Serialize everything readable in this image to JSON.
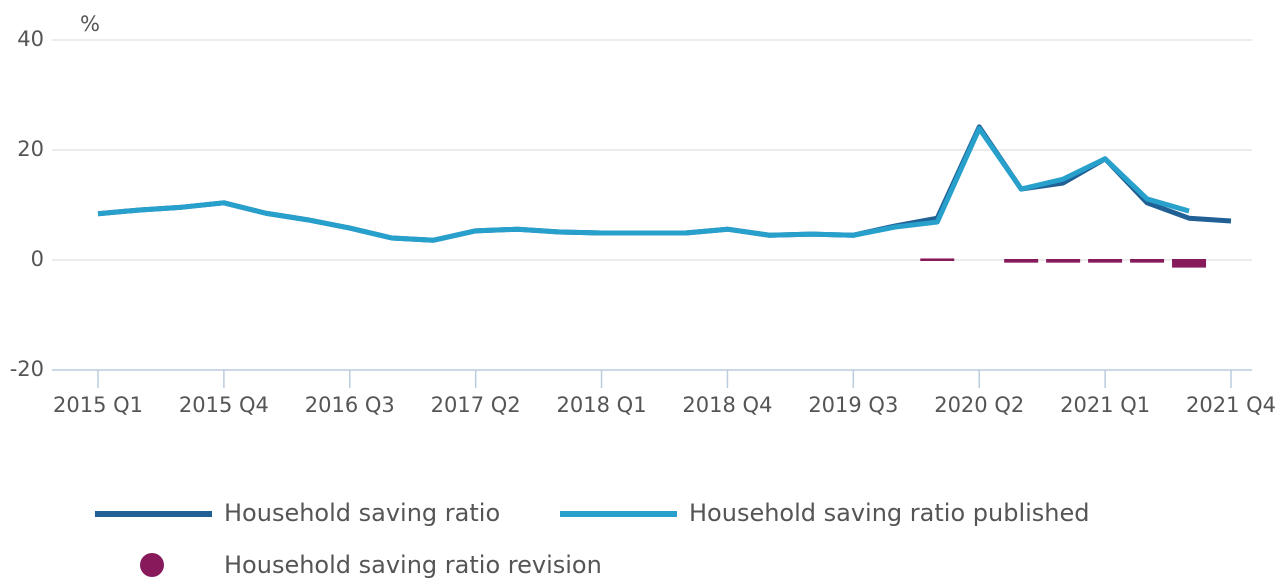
{
  "chart_data": {
    "type": "line",
    "y_label": "%",
    "categories": [
      "2015 Q1",
      null,
      null,
      "2015 Q4",
      null,
      null,
      "2016 Q3",
      null,
      null,
      "2017 Q2",
      null,
      null,
      "2018 Q1",
      null,
      null,
      "2018 Q4",
      null,
      null,
      "2019 Q3",
      null,
      null,
      "2020 Q2",
      null,
      null,
      "2021 Q1",
      null,
      null,
      "2021 Q4"
    ],
    "series": [
      {
        "name": "Household saving ratio",
        "color": "#206095",
        "kind": "line",
        "values": [
          8.4,
          9.1,
          9.6,
          10.4,
          8.5,
          7.3,
          5.8,
          4.0,
          3.6,
          5.3,
          5.6,
          5.1,
          4.9,
          4.9,
          4.9,
          5.6,
          4.5,
          4.7,
          4.5,
          6.2,
          7.6,
          24.2,
          12.9,
          14.0,
          18.4,
          10.4,
          7.6,
          7.1
        ]
      },
      {
        "name": "Household saving ratio published",
        "color": "#27a0cc",
        "kind": "line",
        "values": [
          8.4,
          9.1,
          9.6,
          10.4,
          8.5,
          7.3,
          5.8,
          4.0,
          3.6,
          5.3,
          5.6,
          5.1,
          4.9,
          4.9,
          4.9,
          5.6,
          4.5,
          4.7,
          4.5,
          6.0,
          6.9,
          23.9,
          12.9,
          14.7,
          18.4,
          11.1,
          8.9,
          null
        ]
      },
      {
        "name": "Household saving ratio revision",
        "color": "#871a5b",
        "kind": "bar",
        "values": [
          null,
          null,
          null,
          null,
          null,
          null,
          null,
          null,
          null,
          null,
          null,
          null,
          null,
          null,
          null,
          null,
          null,
          null,
          null,
          null,
          0.1,
          null,
          -0.3,
          -0.3,
          -0.3,
          -0.3,
          -1.2,
          null
        ]
      }
    ],
    "ylim": [
      -20,
      40
    ],
    "yticks": [
      -20,
      0,
      20,
      40
    ],
    "grid": true
  }
}
